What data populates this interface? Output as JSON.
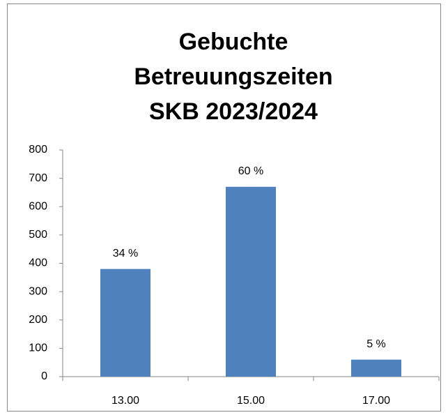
{
  "chart_data": {
    "type": "bar",
    "title": [
      "Gebuchte",
      "Betreuungszeiten",
      "SKB 2023/2024"
    ],
    "categories": [
      "13.00",
      "15.00",
      "17.00"
    ],
    "values": [
      380,
      670,
      60
    ],
    "annotations": [
      "34 %",
      "60 %",
      "5 %"
    ],
    "color": "#4f81bd",
    "ylim": [
      0,
      800
    ],
    "yticks": [
      0,
      100,
      200,
      300,
      400,
      500,
      600,
      700,
      800
    ],
    "grid": false
  }
}
